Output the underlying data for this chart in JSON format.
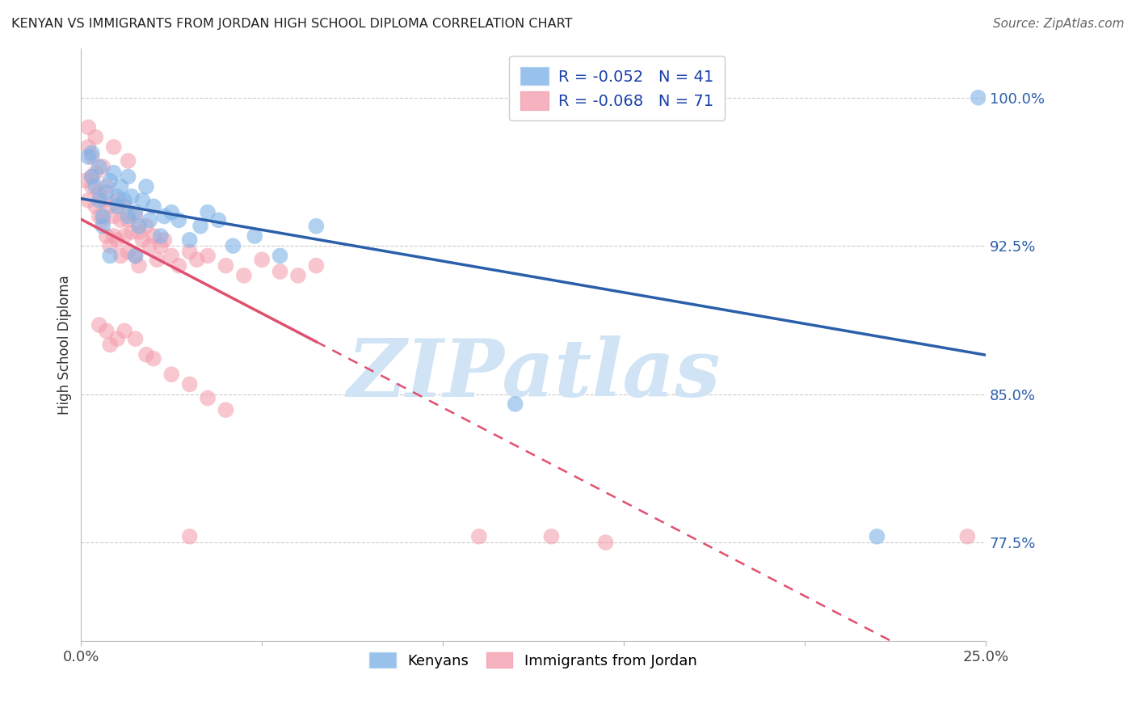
{
  "title": "KENYAN VS IMMIGRANTS FROM JORDAN HIGH SCHOOL DIPLOMA CORRELATION CHART",
  "source": "Source: ZipAtlas.com",
  "ylabel": "High School Diploma",
  "xlim": [
    0.0,
    0.25
  ],
  "ylim": [
    0.725,
    1.025
  ],
  "xticks": [
    0.0,
    0.05,
    0.1,
    0.15,
    0.2,
    0.25
  ],
  "xticklabels": [
    "0.0%",
    "",
    "",
    "",
    "",
    "25.0%"
  ],
  "ytick_vals_right": [
    0.775,
    0.85,
    0.925,
    1.0
  ],
  "ytick_labels_right": [
    "77.5%",
    "85.0%",
    "92.5%",
    "100.0%"
  ],
  "color_kenyan": "#7fb3e8",
  "color_jordan": "#f4a0b0",
  "color_trendline_kenyan": "#2b5faa",
  "color_trendline_jordan": "#e05070",
  "trendline_jordan_dash_start": 0.065,
  "background_color": "#ffffff",
  "grid_color": "#cccccc",
  "kenyan_x": [
    0.002,
    0.003,
    0.004,
    0.005,
    0.005,
    0.006,
    0.007,
    0.008,
    0.009,
    0.01,
    0.01,
    0.011,
    0.012,
    0.013,
    0.013,
    0.014,
    0.015,
    0.016,
    0.017,
    0.018,
    0.019,
    0.02,
    0.022,
    0.023,
    0.025,
    0.027,
    0.03,
    0.033,
    0.035,
    0.038,
    0.042,
    0.048,
    0.055,
    0.065,
    0.12,
    0.22,
    0.003,
    0.006,
    0.008,
    0.015,
    0.248
  ],
  "kenyan_y": [
    0.97,
    0.96,
    0.955,
    0.965,
    0.948,
    0.94,
    0.952,
    0.958,
    0.962,
    0.95,
    0.945,
    0.955,
    0.948,
    0.96,
    0.94,
    0.95,
    0.942,
    0.935,
    0.948,
    0.955,
    0.938,
    0.945,
    0.93,
    0.94,
    0.942,
    0.938,
    0.928,
    0.935,
    0.942,
    0.938,
    0.925,
    0.93,
    0.92,
    0.935,
    0.845,
    0.778,
    0.972,
    0.935,
    0.92,
    0.92,
    1.0
  ],
  "jordan_x": [
    0.001,
    0.002,
    0.002,
    0.003,
    0.003,
    0.004,
    0.004,
    0.005,
    0.005,
    0.006,
    0.006,
    0.007,
    0.007,
    0.008,
    0.008,
    0.009,
    0.009,
    0.01,
    0.01,
    0.011,
    0.011,
    0.012,
    0.012,
    0.013,
    0.013,
    0.014,
    0.015,
    0.015,
    0.016,
    0.016,
    0.017,
    0.018,
    0.019,
    0.02,
    0.021,
    0.022,
    0.023,
    0.025,
    0.027,
    0.03,
    0.032,
    0.035,
    0.04,
    0.045,
    0.05,
    0.055,
    0.06,
    0.065,
    0.005,
    0.007,
    0.008,
    0.01,
    0.012,
    0.015,
    0.018,
    0.02,
    0.025,
    0.03,
    0.035,
    0.04,
    0.13,
    0.145,
    0.11,
    0.002,
    0.003,
    0.004,
    0.006,
    0.009,
    0.013,
    0.03,
    0.245
  ],
  "jordan_y": [
    0.958,
    0.975,
    0.948,
    0.97,
    0.955,
    0.962,
    0.945,
    0.952,
    0.94,
    0.948,
    0.938,
    0.955,
    0.93,
    0.945,
    0.925,
    0.94,
    0.93,
    0.948,
    0.928,
    0.938,
    0.92,
    0.945,
    0.93,
    0.938,
    0.922,
    0.932,
    0.94,
    0.92,
    0.932,
    0.915,
    0.928,
    0.935,
    0.925,
    0.93,
    0.918,
    0.925,
    0.928,
    0.92,
    0.915,
    0.922,
    0.918,
    0.92,
    0.915,
    0.91,
    0.918,
    0.912,
    0.91,
    0.915,
    0.885,
    0.882,
    0.875,
    0.878,
    0.882,
    0.878,
    0.87,
    0.868,
    0.86,
    0.855,
    0.848,
    0.842,
    0.778,
    0.775,
    0.778,
    0.985,
    0.96,
    0.98,
    0.965,
    0.975,
    0.968,
    0.778,
    0.778
  ],
  "legend_text_r_kenyan": "R = -0.052",
  "legend_text_n_kenyan": "N = 41",
  "legend_text_r_jordan": "R = -0.068",
  "legend_text_n_jordan": "N = 71",
  "legend_r_color": "#1a3faa",
  "legend_n_color": "#1a3faa",
  "watermark_text": "ZIPatlas",
  "watermark_color": "#d0e4f5"
}
